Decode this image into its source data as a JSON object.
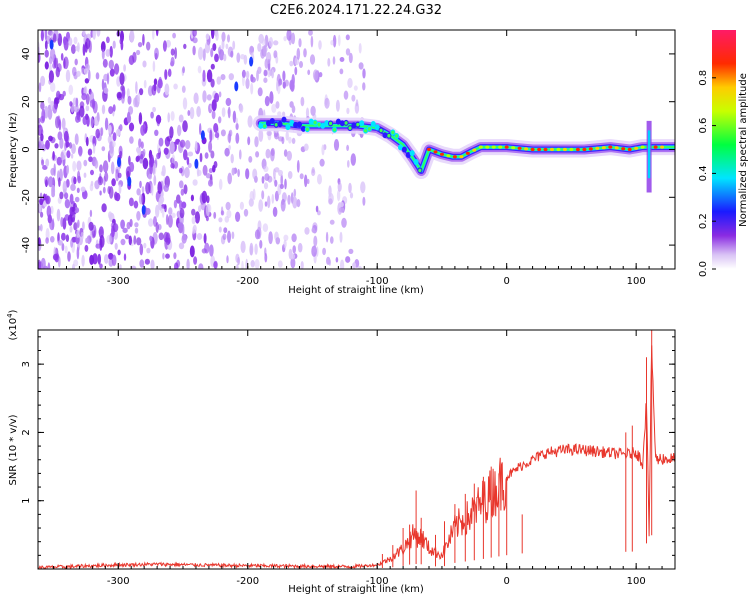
{
  "title": "C2E6.2024.171.22.24.G32",
  "chart_data": [
    {
      "type": "heatmap",
      "xlabel": "Height of straight line (km)",
      "ylabel": "Frequency (Hz)",
      "xlim": [
        -362,
        130
      ],
      "ylim": [
        -50,
        50
      ],
      "xticks": [
        -300,
        -200,
        -100,
        0,
        100
      ],
      "xtick_labels": [
        "-300",
        "-200",
        "-100",
        "0",
        "100"
      ],
      "yticks": [
        -40,
        -20,
        0,
        20,
        40
      ],
      "ytick_labels": [
        "-40",
        "-20",
        "0",
        "20",
        "40"
      ],
      "colorbar": {
        "label": "Normalized spectral amplitude",
        "range": [
          0,
          1
        ],
        "ticks": [
          0.0,
          0.2,
          0.4,
          0.6,
          0.8
        ],
        "tick_labels": [
          "0.0",
          "0.2",
          "0.4",
          "0.6",
          "0.8"
        ],
        "colormap": "rainbow"
      },
      "ridge": {
        "x": [
          -190,
          -175,
          -160,
          -145,
          -130,
          -115,
          -100,
          -90,
          -80,
          -72,
          -66,
          -60,
          -50,
          -42,
          -35,
          -28,
          -20,
          -10,
          0,
          20,
          40,
          60,
          80,
          95,
          105,
          110,
          115,
          130
        ],
        "y": [
          11,
          11,
          10,
          10,
          10,
          10,
          9,
          6,
          2,
          -4,
          -9,
          0,
          -2,
          -3,
          -3,
          -1,
          1,
          1,
          1,
          0,
          0,
          0,
          1,
          0,
          1,
          1,
          1,
          1
        ]
      },
      "noise_region": [
        -362,
        -110
      ],
      "grid": false
    },
    {
      "type": "line",
      "xlabel": "Height of straight line (km)",
      "ylabel": "SNR (10 * v/v)",
      "y_scale_label": "(x10",
      "y_scale_exp": "4",
      "xlim": [
        -362,
        130
      ],
      "ylim": [
        0,
        35000
      ],
      "xticks": [
        -300,
        -200,
        -100,
        0,
        100
      ],
      "xtick_labels": [
        "-300",
        "-200",
        "-100",
        "0",
        "100"
      ],
      "yticks": [
        10000,
        20000,
        30000
      ],
      "ytick_labels": [
        "1",
        "2",
        "3"
      ],
      "series": [
        {
          "color": "#e8372d",
          "x": [
            -362,
            -330,
            -300,
            -270,
            -240,
            -210,
            -180,
            -150,
            -120,
            -100,
            -90,
            -80,
            -72,
            -65,
            -60,
            -55,
            -50,
            -45,
            -40,
            -35,
            -30,
            -25,
            -20,
            -15,
            -10,
            -5,
            0,
            10,
            20,
            30,
            40,
            50,
            60,
            70,
            80,
            90,
            95,
            100,
            105,
            108,
            110,
            112,
            115,
            120,
            125,
            130
          ],
          "y": [
            200,
            400,
            600,
            700,
            600,
            500,
            450,
            400,
            350,
            600,
            1500,
            3000,
            5000,
            4500,
            3000,
            2500,
            2000,
            4000,
            6000,
            7000,
            7500,
            8500,
            9500,
            10500,
            11500,
            12500,
            13500,
            15000,
            16000,
            17000,
            17300,
            17500,
            17400,
            17200,
            17000,
            16800,
            16800,
            17200,
            15500,
            25000,
            5000,
            33000,
            16000,
            16200,
            16100,
            16100
          ]
        }
      ],
      "spikes": [
        {
          "x": -96,
          "y": 2200
        },
        {
          "x": -88,
          "y": 3500
        },
        {
          "x": -80,
          "y": 6000
        },
        {
          "x": -75,
          "y": 6500
        },
        {
          "x": -70,
          "y": 11500
        },
        {
          "x": -66,
          "y": 7500
        },
        {
          "x": -55,
          "y": 5000
        },
        {
          "x": -48,
          "y": 7000
        },
        {
          "x": -40,
          "y": 9500
        },
        {
          "x": -32,
          "y": 11000
        },
        {
          "x": -25,
          "y": 12500
        },
        {
          "x": -18,
          "y": 13500
        },
        {
          "x": -12,
          "y": 15000
        },
        {
          "x": -6,
          "y": 14000
        },
        {
          "x": 0,
          "y": 13500
        },
        {
          "x": 12,
          "y": 8000
        },
        {
          "x": 92,
          "y": 20000
        },
        {
          "x": 97,
          "y": 21000
        },
        {
          "x": 108,
          "y": 31000
        },
        {
          "x": 112,
          "y": 35000
        }
      ],
      "grid": false
    }
  ]
}
